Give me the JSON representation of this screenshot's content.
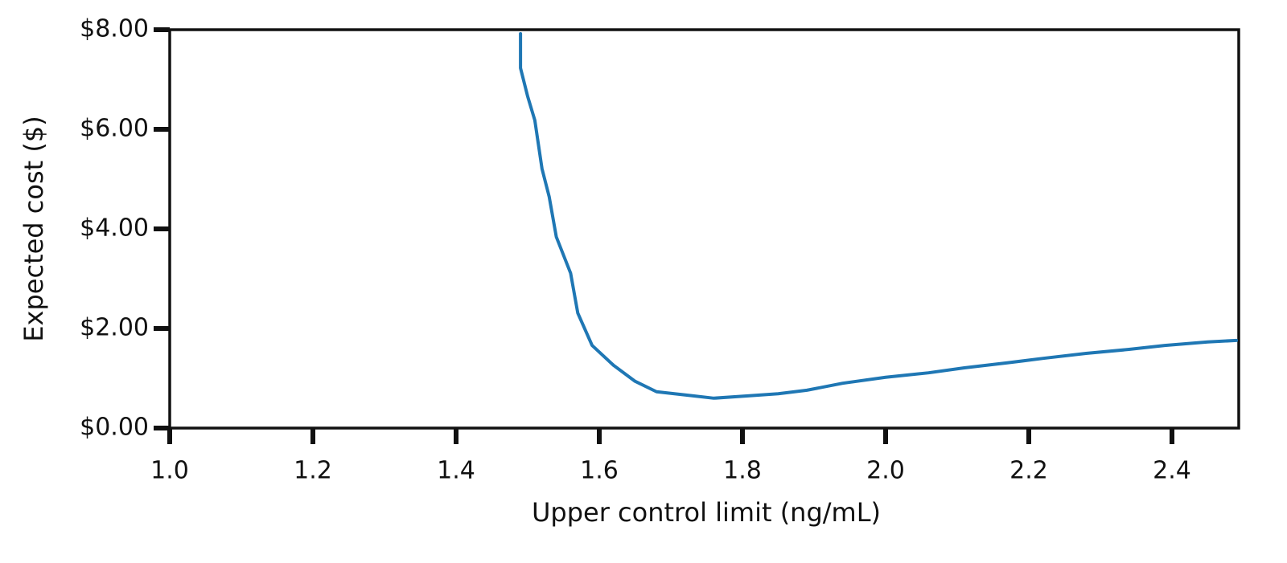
{
  "chart_data": {
    "type": "line",
    "x_label": "Upper control limit (ng/mL)",
    "y_label": "Expected cost ($)",
    "xlim": [
      1.0,
      2.5
    ],
    "ylim": [
      0,
      8
    ],
    "xticks": [
      {
        "value": 1,
        "label": "1.0"
      },
      1.2,
      1.4,
      1.6,
      1.8,
      {
        "value": 2,
        "label": "2.0"
      },
      2.2,
      2.4
    ],
    "yticks": [
      {
        "value": 0,
        "label": "$0.00"
      },
      {
        "value": 2,
        "label": "$2.00"
      },
      {
        "value": 4,
        "label": "$4.00"
      },
      {
        "value": 6,
        "label": "$6.00"
      },
      {
        "value": 8,
        "label": "$8.00"
      }
    ],
    "grid": false,
    "series": [
      {
        "color": "#1f77b4",
        "x": [
          1.49,
          1.49,
          1.5,
          1.51,
          1.52,
          1.53,
          1.54,
          1.56,
          1.57,
          1.59,
          1.62,
          1.65,
          1.68,
          1.73,
          1.76,
          1.81,
          1.85,
          1.89,
          1.94,
          2.0,
          2.06,
          2.11,
          2.17,
          2.22,
          2.28,
          2.34,
          2.39,
          2.45,
          2.49
        ],
        "values": [
          7.92,
          7.23,
          6.66,
          6.18,
          5.21,
          4.65,
          3.84,
          3.11,
          2.31,
          1.66,
          1.26,
          0.94,
          0.73,
          0.65,
          0.6,
          0.65,
          0.69,
          0.76,
          0.9,
          1.02,
          1.11,
          1.21,
          1.31,
          1.4,
          1.5,
          1.58,
          1.66,
          1.73,
          1.76
        ]
      }
    ]
  }
}
